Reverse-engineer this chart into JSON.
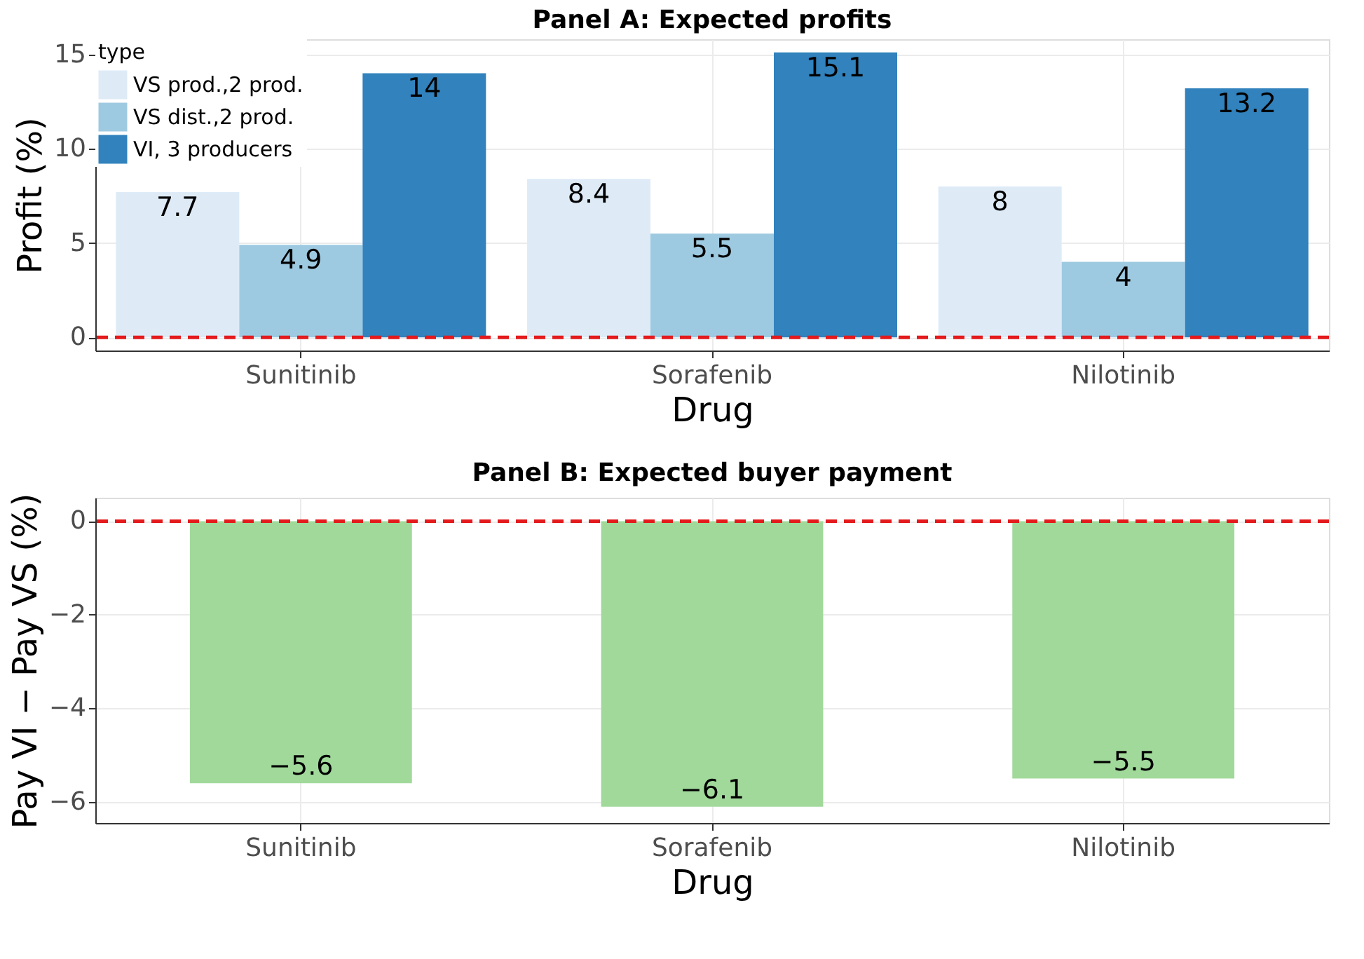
{
  "chart_data": [
    {
      "type": "bar",
      "title": "Panel A: Expected profits",
      "xlabel": "Drug",
      "ylabel": "Profit (%)",
      "legend_title": "type",
      "legend": "top left",
      "grid": true,
      "data_labels": true,
      "categories": [
        "Sunitinib",
        "Sorafenib",
        "Nilotinib"
      ],
      "series": [
        {
          "name": "VS prod.,2 prod.",
          "color": "#deebf7",
          "values": [
            7.7,
            8.4,
            8
          ]
        },
        {
          "name": "VS dist.,2 prod.",
          "color": "#9ecae1",
          "values": [
            4.9,
            5.5,
            4
          ]
        },
        {
          "name": "VI, 3 producers",
          "color": "#3182bd",
          "values": [
            14,
            15.1,
            13.2
          ]
        }
      ],
      "ylim": [
        -0.7,
        15.8
      ],
      "yticks": [
        0,
        5,
        10,
        15
      ],
      "ref_lines": [
        {
          "axis": "y",
          "value": 0,
          "color": "#e41a1c",
          "line_style": "dashed"
        }
      ]
    },
    {
      "type": "bar",
      "title": "Panel B: Expected buyer payment",
      "xlabel": "Drug",
      "ylabel": "Pay VI − Pay VS (%)",
      "grid": true,
      "data_labels": true,
      "categories": [
        "Sunitinib",
        "Sorafenib",
        "Nilotinib"
      ],
      "series": [
        {
          "color": "#a1d99b",
          "values": [
            -5.6,
            -6.1,
            -5.5
          ]
        }
      ],
      "ylim": [
        -6.45,
        0.5
      ],
      "yticks": [
        0,
        -2,
        -4,
        -6
      ],
      "ref_lines": [
        {
          "axis": "y",
          "value": 0,
          "color": "#e41a1c",
          "line_style": "dashed"
        }
      ]
    }
  ]
}
